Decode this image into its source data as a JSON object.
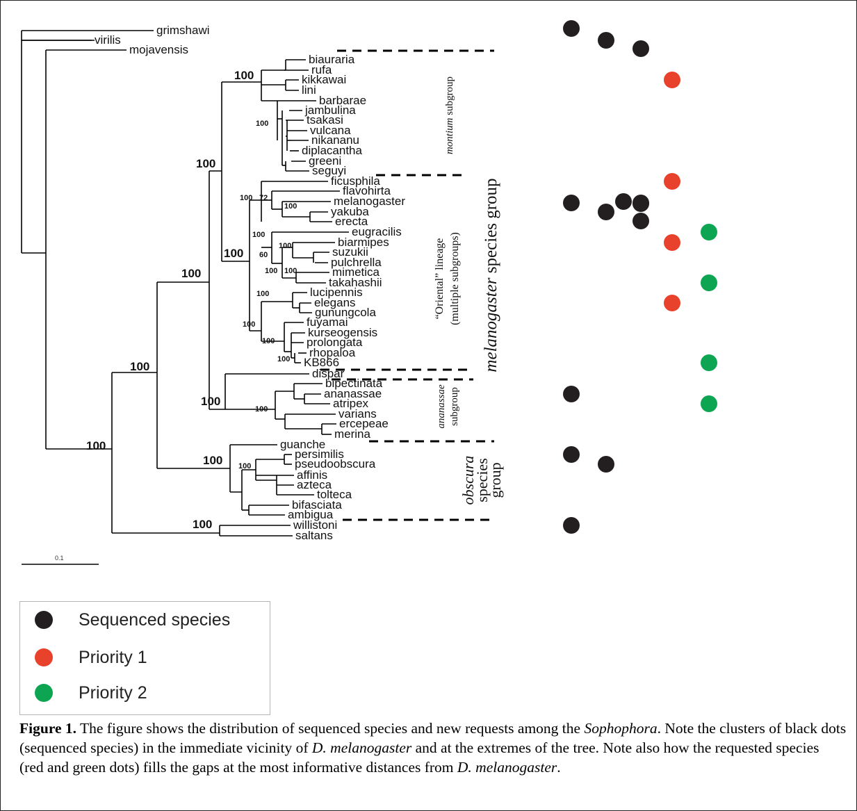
{
  "tips": [
    "grimshawi",
    "virilis",
    "mojavensis",
    "biauraria",
    "rufa",
    "kikkawai",
    "lini",
    "barbarae",
    "jambulina",
    "tsakasi",
    "vulcana",
    "nikananu",
    "diplacantha",
    "greeni",
    "seguyi",
    "ficusphila",
    "flavohirta",
    "melanogaster",
    "yakuba",
    "erecta",
    "eugracilis",
    "biarmipes",
    "suzukii",
    "pulchrella",
    "mimetica",
    "takahashii",
    "lucipennis",
    "elegans",
    "gunungcola",
    "fuyamai",
    "kurseogensis",
    "prolongata",
    "rhopaloa",
    "KB866",
    "dispar",
    "bipectinata",
    "ananassae",
    "atripex",
    "varians",
    "ercepeae",
    "merina",
    "guanche",
    "persimilis",
    "pseudoobscura",
    "affinis",
    "azteca",
    "tolteca",
    "bifasciata",
    "ambigua",
    "willistoni",
    "saltans"
  ],
  "support": {
    "big": [
      "100",
      "100",
      "100",
      "100",
      "100",
      "100",
      "100",
      "100",
      "100",
      "100"
    ],
    "small": [
      "100",
      "100",
      "72",
      "100",
      "100",
      "60",
      "100",
      "100",
      "100",
      "100",
      "100",
      "100",
      "100",
      "100",
      "100"
    ]
  },
  "groups": {
    "montium": "montium",
    "montium_suffix": " subgroup",
    "oriental_1": "“Oriental” lineage",
    "oriental_2": "(multiple subgroups)",
    "melanogaster": "melanogaster",
    "melanogaster_suffix": " species group",
    "ananassae": "ananassae",
    "ananassae_2": "subgroup",
    "obscura": "obscura",
    "obscura_2": "species",
    "obscura_3": "group"
  },
  "scale_bar": "0.1",
  "colors": {
    "sequenced": "#231f20",
    "priority1": "#e8412c",
    "priority2": "#0ea552"
  },
  "dots": [
    {
      "row": "grimshawi",
      "col": 1,
      "status": "sequenced"
    },
    {
      "row": "virilis",
      "col": 2,
      "status": "sequenced"
    },
    {
      "row": "mojavensis",
      "col": 3,
      "status": "sequenced"
    },
    {
      "row": "kikkawai",
      "col": 4,
      "status": "priority1"
    },
    {
      "row": "ficusphila",
      "col": 4,
      "status": "priority1"
    },
    {
      "row": "melanogaster",
      "col": 1,
      "status": "sequenced"
    },
    {
      "row": "melanogaster",
      "col": 2,
      "status": "sequenced"
    },
    {
      "row": "melanogaster",
      "col": 3,
      "status": "sequenced"
    },
    {
      "row": "melanogaster",
      "col": 4,
      "status": "sequenced"
    },
    {
      "row": "yakuba",
      "col": 4,
      "status": "sequenced"
    },
    {
      "row": "erecta",
      "col": 4,
      "status": "sequenced"
    },
    {
      "row": "eugracilis",
      "col": 5,
      "status": "priority2"
    },
    {
      "row": "biarmipes",
      "col": 4,
      "status": "priority1"
    },
    {
      "row": "takahashii",
      "col": 5,
      "status": "priority2"
    },
    {
      "row": "elegans",
      "col": 4,
      "status": "priority1"
    },
    {
      "row": "KB866",
      "col": 5,
      "status": "priority2"
    },
    {
      "row": "ananassae",
      "col": 1,
      "status": "sequenced"
    },
    {
      "row": "atripex",
      "col": 5,
      "status": "priority2"
    },
    {
      "row": "persimilis",
      "col": 1,
      "status": "sequenced"
    },
    {
      "row": "pseudoobscura",
      "col": 2,
      "status": "sequenced"
    },
    {
      "row": "willistoni",
      "col": 1,
      "status": "sequenced"
    }
  ],
  "legend": [
    {
      "label": "Sequenced species",
      "status": "sequenced"
    },
    {
      "label": "Priority 1",
      "status": "priority1"
    },
    {
      "label": "Priority 2",
      "status": "priority2"
    }
  ],
  "caption": {
    "label": "Figure 1.",
    "t1": "  The figure shows the distribution of sequenced species and new requests among the ",
    "i1": "Sophophora",
    "t2": ". Note the clusters of black dots (sequenced species) in the immediate vicinity of ",
    "i2": "D. melanogaster",
    "t3": " and at the extremes of the tree.  Note also how the requested species (red and green dots) fills the gaps at the most informative distances from ",
    "i3": "D. melanogaster",
    "t4": "."
  }
}
